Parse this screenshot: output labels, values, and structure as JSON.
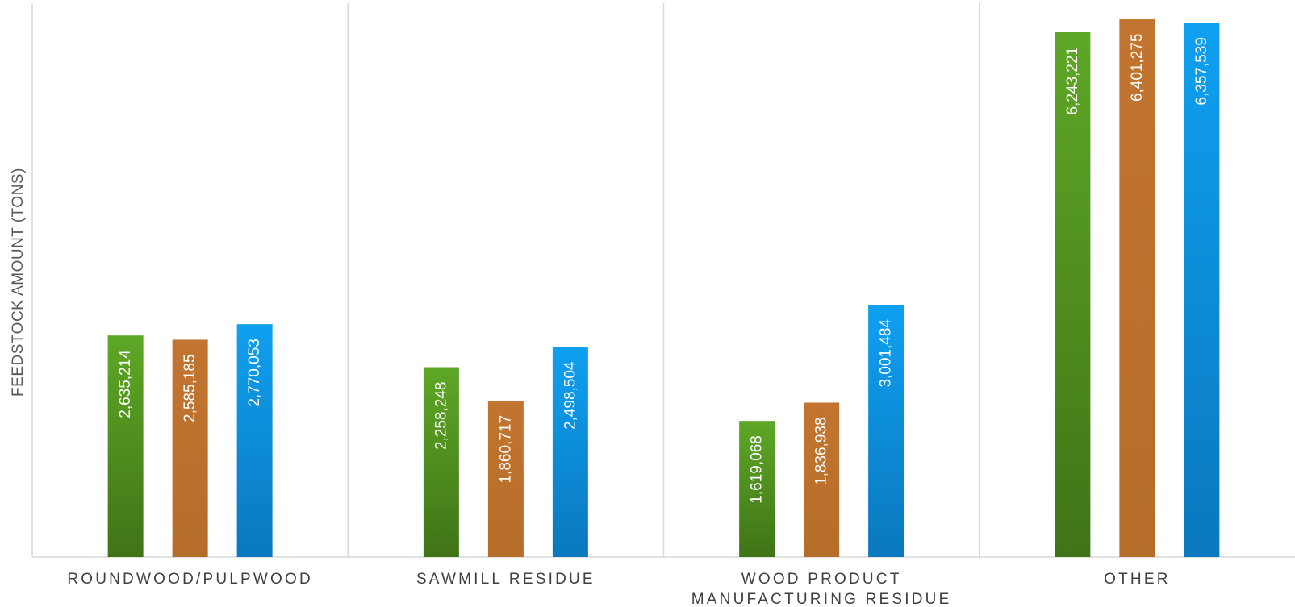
{
  "chart_data": {
    "type": "bar",
    "ylabel": "FEEDSTOCK AMOUNT (TONS)",
    "xlabel": "",
    "ylim": [
      0,
      6550000
    ],
    "grid": false,
    "categories": [
      [
        "ROUNDWOOD/PULPWOOD"
      ],
      [
        "SAWMILL RESIDUE"
      ],
      [
        "WOOD PRODUCT",
        "MANUFACTURING RESIDUE"
      ],
      [
        "OTHER"
      ]
    ],
    "series": [
      {
        "values": [
          2635214,
          2258248,
          1619068,
          6243221
        ],
        "labels": [
          "2,635,214",
          "2,258,248",
          "1,619,068",
          "6,243,221"
        ],
        "color": "#4e8f1f",
        "color_top": "#5ea726",
        "color_bottom": "#3f7417"
      },
      {
        "values": [
          2585185,
          1860717,
          1836938,
          6401275
        ],
        "labels": [
          "2,585,185",
          "1,860,717",
          "1,836,938",
          "6,401,275"
        ],
        "color": "#b8702c",
        "color_top": "#c27530",
        "color_bottom": "#b56d2a"
      },
      {
        "values": [
          2770053,
          2498504,
          3001484,
          6357539
        ],
        "labels": [
          "2,770,053",
          "2,498,504",
          "3,001,484",
          "6,357,539"
        ],
        "color": "#0b8ed8",
        "color_top": "#0fa0f0",
        "color_bottom": "#0a78be"
      }
    ]
  }
}
